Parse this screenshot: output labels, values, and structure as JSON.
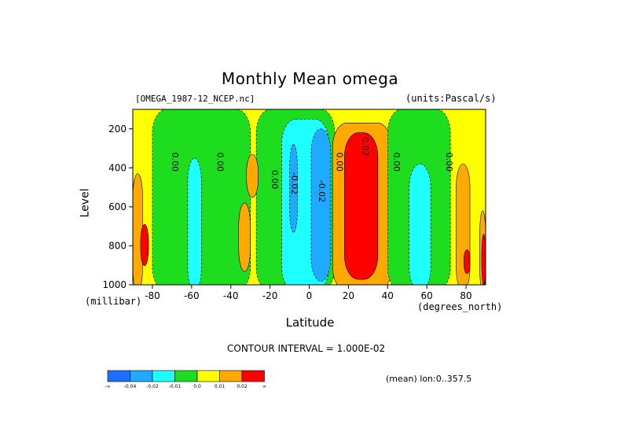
{
  "header": {
    "title": "Monthly Mean omega",
    "file": "[OMEGA_1987-12_NCEP.nc]",
    "units": "(units:Pascal/s)"
  },
  "footer": {
    "contour_interval": "CONTOUR INTERVAL = 1.000E-02",
    "mean_note": "(mean) lon:0..357.5"
  },
  "colors": {
    "lt_m04": "#1e6eff",
    "m04_m02": "#1eaaff",
    "m02_m01": "#1effff",
    "m01_0": "#1edc1e",
    "0_01": "#ffff00",
    "01_02": "#ffaa00",
    "gt_02": "#ff0000"
  },
  "chart_data": {
    "type": "heatmap",
    "title": "Monthly Mean omega",
    "xlabel": "Latitude",
    "xunit": "(degrees_north)",
    "ylabel": "Level",
    "yunit": "(millibar)",
    "xlim": [
      -90,
      90
    ],
    "ylim": [
      1000,
      100
    ],
    "y_inverted": true,
    "x_ticks": [
      -80,
      -60,
      -40,
      -20,
      0,
      20,
      40,
      60,
      80
    ],
    "x_tick_labels": [
      "-80",
      "-60",
      "-40",
      "-20",
      "0",
      "20",
      "40",
      "60",
      "80"
    ],
    "y_ticks": [
      200,
      400,
      600,
      800,
      1000
    ],
    "y_tick_labels": [
      "200",
      "400",
      "600",
      "800",
      "1000"
    ],
    "contour_interval": 0.01,
    "colorbar": {
      "boundary_labels": [
        "-∞",
        "-0.04",
        "-0.02",
        "-0.01",
        "0.0",
        "0.01",
        "0.02",
        "∞"
      ],
      "colors": [
        "#1e6eff",
        "#1eaaff",
        "#1effff",
        "#1edc1e",
        "#ffff00",
        "#ffaa00",
        "#ff0000"
      ]
    },
    "contour_labels": [
      {
        "text": "0.00",
        "lat": -70,
        "level": 370
      },
      {
        "text": "0.00",
        "lat": -47,
        "level": 370
      },
      {
        "text": "0.00",
        "lat": -19,
        "level": 460
      },
      {
        "text": "-0.02",
        "lat": -9,
        "level": 480
      },
      {
        "text": "-0.02",
        "lat": 5,
        "level": 520
      },
      {
        "text": "0.00",
        "lat": 14,
        "level": 370
      },
      {
        "text": "0.02",
        "lat": 27,
        "level": 290
      },
      {
        "text": "0.00",
        "lat": 43,
        "level": 370
      },
      {
        "text": "0.00",
        "lat": 70,
        "level": 370
      }
    ],
    "regions": [
      {
        "category": "m01_0",
        "lat_range": [
          -80,
          -30
        ],
        "level_range": [
          100,
          1000
        ],
        "note": "broad weak subsidence-to-ascent band"
      },
      {
        "category": "m02_m01",
        "lat_range": [
          -62,
          -55
        ],
        "level_range": [
          350,
          1000
        ]
      },
      {
        "category": "m01_0",
        "lat_range": [
          -27,
          13
        ],
        "level_range": [
          100,
          1000
        ]
      },
      {
        "category": "m02_m01",
        "lat_range": [
          -14,
          10
        ],
        "level_range": [
          150,
          1000
        ]
      },
      {
        "category": "m04_m02",
        "lat_range": [
          -10,
          -6
        ],
        "level_range": [
          280,
          700
        ]
      },
      {
        "category": "m04_m02",
        "lat_range": [
          1,
          11
        ],
        "level_range": [
          200,
          950
        ]
      },
      {
        "category": "01_02",
        "lat_range": [
          12,
          42
        ],
        "level_range": [
          170,
          1000
        ]
      },
      {
        "category": "gt_02",
        "lat_range": [
          18,
          35
        ],
        "level_range": [
          220,
          940
        ]
      },
      {
        "category": "m01_0",
        "lat_range": [
          40,
          72
        ],
        "level_range": [
          100,
          1000
        ]
      },
      {
        "category": "m02_m01",
        "lat_range": [
          51,
          62
        ],
        "level_range": [
          380,
          1000
        ]
      },
      {
        "category": "01_02",
        "lat_range": [
          -32,
          -26
        ],
        "level_range": [
          330,
          520
        ]
      },
      {
        "category": "01_02",
        "lat_range": [
          -36,
          -30
        ],
        "level_range": [
          580,
          900
        ]
      },
      {
        "category": "01_02",
        "lat_range": [
          75,
          82
        ],
        "level_range": [
          380,
          1000
        ]
      },
      {
        "category": "gt_02",
        "lat_range": [
          79,
          82
        ],
        "level_range": [
          820,
          910
        ]
      },
      {
        "category": "01_02",
        "lat_range": [
          -90,
          -85
        ],
        "level_range": [
          430,
          1000
        ]
      },
      {
        "category": "gt_02",
        "lat_range": [
          -86,
          -82
        ],
        "level_range": [
          690,
          870
        ]
      },
      {
        "category": "01_02",
        "lat_range": [
          87,
          90
        ],
        "level_range": [
          620,
          1000
        ]
      },
      {
        "category": "gt_02",
        "lat_range": [
          88,
          90
        ],
        "level_range": [
          740,
          970
        ]
      }
    ]
  }
}
